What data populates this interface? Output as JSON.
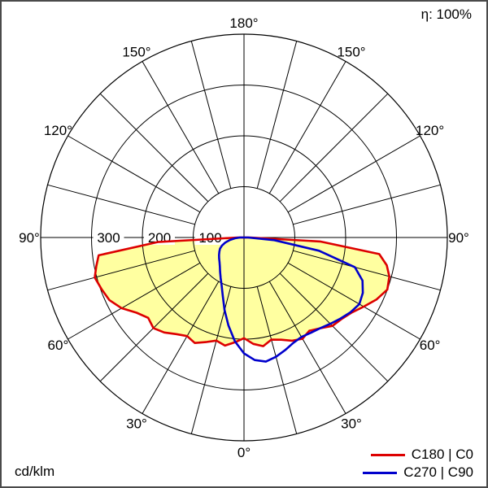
{
  "title": "η: 100%",
  "unit": "cd/klm",
  "legend": [
    {
      "label": "C180 | C0",
      "color": "#dd0000"
    },
    {
      "label": "C270 | C90",
      "color": "#0000cc"
    }
  ],
  "chart_data": {
    "type": "line",
    "subtype": "polar-photometric",
    "title": "η: 100%",
    "radial_unit": "cd/klm",
    "orientation": "0° at bottom (nadir), 180° at top, angles mirrored left/right",
    "grid": true,
    "angle_ticks": [
      {
        "value": 180,
        "label": "180°"
      },
      {
        "value": 150,
        "label": "150°"
      },
      {
        "value": 120,
        "label": "120°"
      },
      {
        "value": 90,
        "label": "90°"
      },
      {
        "value": 60,
        "label": "60°"
      },
      {
        "value": 30,
        "label": "30°"
      },
      {
        "value": 0,
        "label": "0°"
      }
    ],
    "radial_ticks": [
      {
        "value": 300,
        "label": "300"
      },
      {
        "value": 200,
        "label": "200"
      },
      {
        "value": 100,
        "label": "100"
      }
    ],
    "radial_max": 400,
    "series": [
      {
        "name": "C180 | C0",
        "color": "#dd0000",
        "fill": "#ffffa0",
        "gamma": [
          -90,
          -87,
          -83,
          -79,
          -75,
          -70,
          -65,
          -60,
          -55,
          -50,
          -45,
          -40,
          -35,
          -30,
          -25,
          -20,
          -15,
          -10,
          -5,
          0,
          5,
          10,
          15,
          20,
          25,
          30,
          35,
          40,
          45,
          50,
          55,
          60,
          65,
          70,
          75,
          79,
          83,
          87,
          90
        ],
        "values": [
          12,
          170,
          288,
          296,
          304,
          298,
          292,
          278,
          258,
          246,
          252,
          244,
          232,
          224,
          229,
          219,
          210,
          216,
          207,
          198,
          210,
          217,
          208,
          214,
          224,
          230,
          224,
          233,
          246,
          250,
          258,
          272,
          288,
          300,
          296,
          286,
          268,
          150,
          12
        ]
      },
      {
        "name": "C270 | C90",
        "color": "#0000cc",
        "fill": null,
        "gamma": [
          -90,
          -85,
          -80,
          -75,
          -70,
          -65,
          -60,
          -55,
          -50,
          -45,
          -40,
          -35,
          -30,
          -25,
          -20,
          -15,
          -10,
          -5,
          0,
          5,
          10,
          15,
          20,
          25,
          30,
          35,
          40,
          45,
          50,
          55,
          60,
          65,
          70,
          75,
          80,
          85,
          90
        ],
        "values": [
          8,
          18,
          28,
          38,
          46,
          52,
          56,
          60,
          64,
          68,
          74,
          82,
          92,
          104,
          122,
          148,
          176,
          205,
          228,
          242,
          248,
          243,
          236,
          229,
          226,
          229,
          233,
          240,
          248,
          256,
          262,
          258,
          248,
          226,
          150,
          60,
          8
        ]
      }
    ]
  }
}
